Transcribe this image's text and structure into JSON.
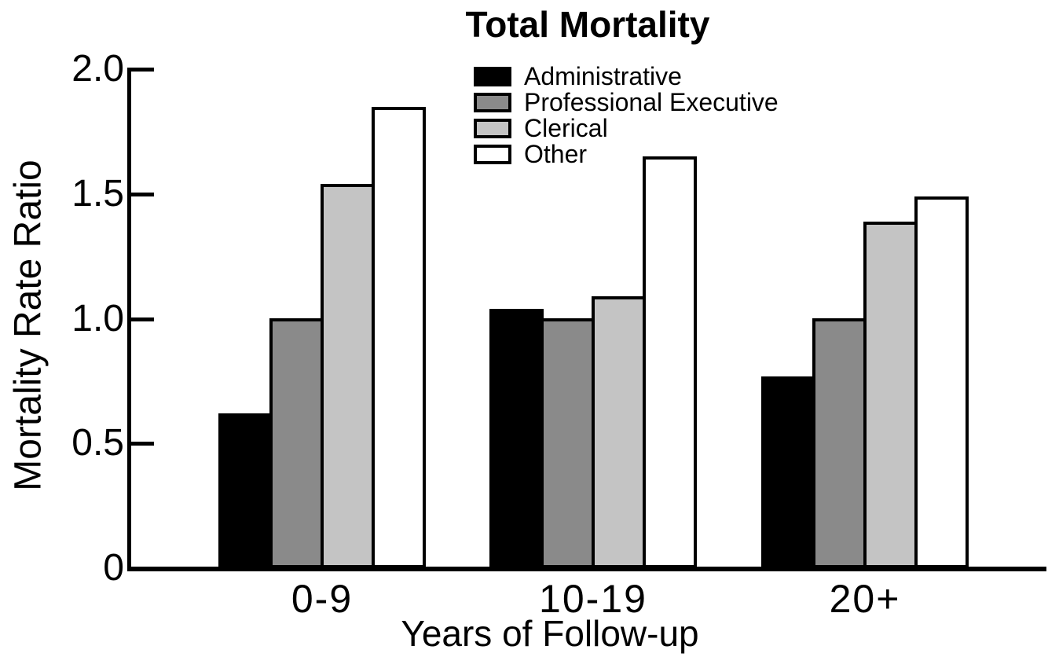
{
  "chart_data": {
    "type": "bar",
    "title": "Total Mortality",
    "xlabel": "Years of Follow-up",
    "ylabel": "Mortality Rate Ratio",
    "categories": [
      "0-9",
      "10-19",
      "20+"
    ],
    "series": [
      {
        "name": "Administrative",
        "color": "#000000",
        "values": [
          0.62,
          1.04,
          0.77
        ]
      },
      {
        "name": "Professional Executive",
        "color": "#8a8a8a",
        "values": [
          1.0,
          1.0,
          1.0
        ]
      },
      {
        "name": "Clerical",
        "color": "#c4c4c4",
        "values": [
          1.54,
          1.09,
          1.39
        ]
      },
      {
        "name": "Other",
        "color": "#ffffff",
        "values": [
          1.85,
          1.65,
          1.49
        ]
      }
    ],
    "ylim": [
      0,
      2.0
    ],
    "yticks": [
      0,
      0.5,
      1.0,
      1.5,
      2.0
    ],
    "ytick_labels": [
      "0",
      "0.5",
      "1.0",
      "1.5",
      "2.0"
    ],
    "grid": false,
    "legend_position": "upper-center-inside",
    "bar_border_color": "#000000",
    "background_color": "#ffffff"
  }
}
